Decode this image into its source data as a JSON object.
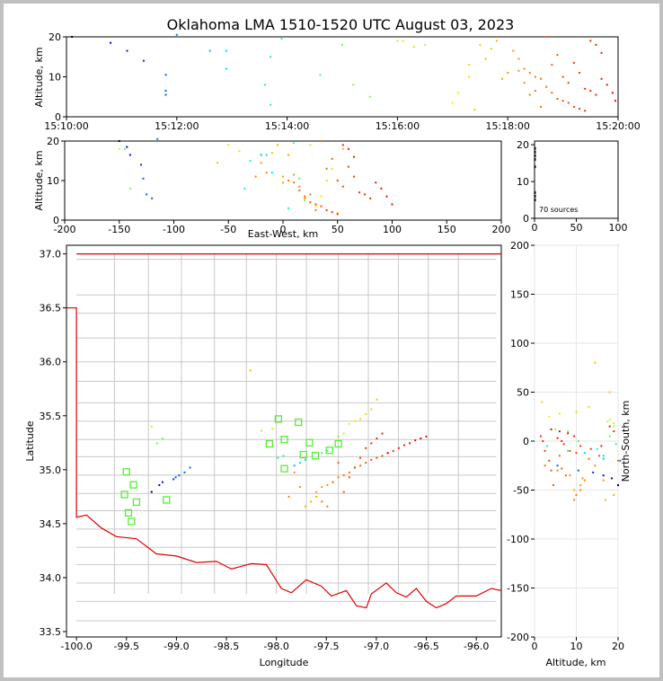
{
  "chart_data": {
    "type": "scatter",
    "title": "Oklahoma LMA 1510-1520 UTC August 03, 2023",
    "source_count_label": "70 sources",
    "time_panel": {
      "ylabel": "Altitude, km",
      "x_ticks": [
        "15:10:00",
        "15:12:00",
        "15:14:00",
        "15:16:00",
        "15:18:00",
        "15:20:00"
      ],
      "x_tick_minutes": [
        0,
        2,
        4,
        6,
        8,
        10
      ],
      "xlim": [
        0,
        10
      ],
      "ylim": [
        0,
        20
      ],
      "y_ticks": [
        0,
        10,
        20
      ]
    },
    "ew_panel": {
      "xlabel": "East-West, km",
      "ylabel": "Altitude, km",
      "xlim": [
        -200,
        200
      ],
      "ylim": [
        0,
        20
      ],
      "x_ticks": [
        -200,
        -150,
        -100,
        -50,
        0,
        50,
        100,
        150,
        200
      ],
      "y_ticks": [
        0,
        10,
        20
      ]
    },
    "hist_panel": {
      "xlim": [
        0,
        100
      ],
      "ylim": [
        0,
        21
      ],
      "x_ticks": [
        0,
        50,
        100
      ],
      "y_ticks": [
        0,
        10,
        20
      ],
      "counts": [
        {
          "alt": 5,
          "count": 1
        },
        {
          "alt": 6,
          "count": 1
        },
        {
          "alt": 7,
          "count": 1
        },
        {
          "alt": 14,
          "count": 1
        },
        {
          "alt": 16,
          "count": 1
        },
        {
          "alt": 17,
          "count": 1
        },
        {
          "alt": 18,
          "count": 1
        },
        {
          "alt": 19,
          "count": 1
        }
      ]
    },
    "map_panel": {
      "xlabel": "Longitude",
      "ylabel": "Latitude",
      "xlim": [
        -100.1,
        -95.75
      ],
      "ylim": [
        33.45,
        37.08
      ],
      "x_ticks": [
        -100.0,
        -99.5,
        -99.0,
        -98.5,
        -98.0,
        -97.5,
        -97.0,
        -96.5,
        -96.0
      ],
      "y_ticks": [
        33.5,
        34.0,
        34.5,
        35.0,
        35.5,
        36.0,
        36.5,
        37.0
      ],
      "boundary_color": "#e00000",
      "county_color": "#c8c8c8",
      "stations": [
        {
          "lon": -99.5,
          "lat": 34.98
        },
        {
          "lon": -99.43,
          "lat": 34.86
        },
        {
          "lon": -99.52,
          "lat": 34.77
        },
        {
          "lon": -99.4,
          "lat": 34.7
        },
        {
          "lon": -99.48,
          "lat": 34.6
        },
        {
          "lon": -99.45,
          "lat": 34.52
        },
        {
          "lon": -99.1,
          "lat": 34.72
        },
        {
          "lon": -97.98,
          "lat": 35.47
        },
        {
          "lon": -97.92,
          "lat": 35.28
        },
        {
          "lon": -98.07,
          "lat": 35.24
        },
        {
          "lon": -97.78,
          "lat": 35.44
        },
        {
          "lon": -97.67,
          "lat": 35.25
        },
        {
          "lon": -97.73,
          "lat": 35.14
        },
        {
          "lon": -97.61,
          "lat": 35.13
        },
        {
          "lon": -97.47,
          "lat": 35.18
        },
        {
          "lon": -97.38,
          "lat": 35.24
        },
        {
          "lon": -97.92,
          "lat": 35.01
        }
      ]
    },
    "ns_panel": {
      "xlabel": "Altitude, km",
      "ylabel": "North-South, km",
      "xlim": [
        0,
        20
      ],
      "ylim": [
        -200,
        200
      ],
      "x_ticks": [
        0,
        10,
        20
      ],
      "y_ticks": [
        -200,
        -150,
        -100,
        -50,
        0,
        50,
        100,
        150,
        200
      ]
    },
    "sources": [
      {
        "t": 0.1,
        "ew": -150,
        "ns": -45,
        "alt": 20.0
      },
      {
        "t": 0.8,
        "ew": -143,
        "ns": -38,
        "alt": 18.5
      },
      {
        "t": 1.1,
        "ew": -140,
        "ns": -35,
        "alt": 16.5
      },
      {
        "t": 1.4,
        "ew": -130,
        "ns": -32,
        "alt": 14.0
      },
      {
        "t": 1.8,
        "ew": -128,
        "ns": -30,
        "alt": 10.5
      },
      {
        "t": 1.8,
        "ew": -125,
        "ns": -28,
        "alt": 6.5
      },
      {
        "t": 1.8,
        "ew": -120,
        "ns": -25,
        "alt": 5.5
      },
      {
        "t": 2.0,
        "ew": -115,
        "ns": -20,
        "alt": 20.5
      },
      {
        "t": 2.6,
        "ew": -20,
        "ns": -18,
        "alt": 16.5
      },
      {
        "t": 2.9,
        "ew": -15,
        "ns": -15,
        "alt": 16.5
      },
      {
        "t": 2.9,
        "ew": -10,
        "ns": -12,
        "alt": 12.0
      },
      {
        "t": 3.6,
        "ew": -35,
        "ns": -10,
        "alt": 8.0
      },
      {
        "t": 3.7,
        "ew": -30,
        "ns": -8,
        "alt": 15.0
      },
      {
        "t": 3.7,
        "ew": 5,
        "ns": -5,
        "alt": 3.0
      },
      {
        "t": 3.9,
        "ew": 10,
        "ns": -3,
        "alt": 19.5
      },
      {
        "t": 4.6,
        "ew": 15,
        "ns": 0,
        "alt": 10.5
      },
      {
        "t": 5.0,
        "ew": -145,
        "ns": 5,
        "alt": 18.0
      },
      {
        "t": 5.2,
        "ew": -140,
        "ns": 10,
        "alt": 8.0
      },
      {
        "t": 5.5,
        "ew": 20,
        "ns": 12,
        "alt": 5.0
      },
      {
        "t": 6.0,
        "ew": 25,
        "ns": 15,
        "alt": 19.0
      },
      {
        "t": 6.1,
        "ew": -50,
        "ns": 18,
        "alt": 19.0
      },
      {
        "t": 6.3,
        "ew": -40,
        "ns": 20,
        "alt": 17.5
      },
      {
        "t": 6.5,
        "ew": -150,
        "ns": 22,
        "alt": 18.0
      },
      {
        "t": 7.0,
        "ew": 30,
        "ns": 25,
        "alt": 3.5
      },
      {
        "t": 7.1,
        "ew": 35,
        "ns": 28,
        "alt": 6.0
      },
      {
        "t": 7.3,
        "ew": 40,
        "ns": 30,
        "alt": 10.0
      },
      {
        "t": 7.3,
        "ew": 45,
        "ns": 35,
        "alt": 13.0
      },
      {
        "t": 7.4,
        "ew": 50,
        "ns": 40,
        "alt": 1.8
      },
      {
        "t": 7.5,
        "ew": 55,
        "ns": 50,
        "alt": 18.0
      },
      {
        "t": 7.6,
        "ew": -60,
        "ns": 80,
        "alt": 14.5
      },
      {
        "t": 7.7,
        "ew": -10,
        "ns": -60,
        "alt": 17.0
      },
      {
        "t": 7.8,
        "ew": -5,
        "ns": -55,
        "alt": 19.0
      },
      {
        "t": 7.9,
        "ew": 0,
        "ns": -50,
        "alt": 9.5
      },
      {
        "t": 8.0,
        "ew": 0,
        "ns": -45,
        "alt": 11.0
      },
      {
        "t": 8.1,
        "ew": 5,
        "ns": -40,
        "alt": 16.5
      },
      {
        "t": 8.2,
        "ew": 10,
        "ns": -38,
        "alt": 11.5
      },
      {
        "t": 8.3,
        "ew": 15,
        "ns": -35,
        "alt": 8.5
      },
      {
        "t": 8.4,
        "ew": 20,
        "ns": -30,
        "alt": 5.5
      },
      {
        "t": 8.5,
        "ew": 25,
        "ns": -28,
        "alt": 6.5
      },
      {
        "t": 8.6,
        "ew": 30,
        "ns": -25,
        "alt": 2.5
      },
      {
        "t": 8.7,
        "ew": 35,
        "ns": -20,
        "alt": 20.0
      },
      {
        "t": 8.8,
        "ew": 40,
        "ns": -18,
        "alt": 13.0
      },
      {
        "t": 8.9,
        "ew": 45,
        "ns": -15,
        "alt": 15.5
      },
      {
        "t": 9.0,
        "ew": 50,
        "ns": -12,
        "alt": 10.0
      },
      {
        "t": 9.1,
        "ew": 55,
        "ns": -10,
        "alt": 8.5
      },
      {
        "t": 9.2,
        "ew": 60,
        "ns": -8,
        "alt": 13.5
      },
      {
        "t": 9.3,
        "ew": 65,
        "ns": -5,
        "alt": 11.0
      },
      {
        "t": 9.4,
        "ew": 70,
        "ns": -3,
        "alt": 7.0
      },
      {
        "t": 9.5,
        "ew": 75,
        "ns": 0,
        "alt": 6.5
      },
      {
        "t": 9.6,
        "ew": 80,
        "ns": 3,
        "alt": 5.5
      },
      {
        "t": 9.7,
        "ew": 85,
        "ns": 5,
        "alt": 9.5
      },
      {
        "t": 9.8,
        "ew": 90,
        "ns": 8,
        "alt": 8.0
      },
      {
        "t": 9.9,
        "ew": 95,
        "ns": 10,
        "alt": 6.0
      },
      {
        "t": 9.95,
        "ew": 100,
        "ns": 12,
        "alt": 4.0
      },
      {
        "t": 8.2,
        "ew": -20,
        "ns": -25,
        "alt": 14.5
      },
      {
        "t": 8.3,
        "ew": -15,
        "ns": -40,
        "alt": 12.0
      },
      {
        "t": 8.4,
        "ew": -25,
        "ns": -50,
        "alt": 11.0
      },
      {
        "t": 8.5,
        "ew": 5,
        "ns": -55,
        "alt": 10.0
      },
      {
        "t": 8.6,
        "ew": 10,
        "ns": -60,
        "alt": 9.5
      },
      {
        "t": 8.7,
        "ew": 15,
        "ns": -35,
        "alt": 7.5
      },
      {
        "t": 8.8,
        "ew": 20,
        "ns": -15,
        "alt": 6.0
      },
      {
        "t": 8.9,
        "ew": 25,
        "ns": -45,
        "alt": 4.5
      },
      {
        "t": 9.0,
        "ew": 30,
        "ns": -30,
        "alt": 4.0
      },
      {
        "t": 9.1,
        "ew": 35,
        "ns": -20,
        "alt": 3.5
      },
      {
        "t": 9.2,
        "ew": 40,
        "ns": -10,
        "alt": 2.5
      },
      {
        "t": 9.3,
        "ew": 45,
        "ns": 0,
        "alt": 2.0
      },
      {
        "t": 9.4,
        "ew": 50,
        "ns": 5,
        "alt": 1.5
      },
      {
        "t": 9.5,
        "ew": 55,
        "ns": 10,
        "alt": 19.0
      },
      {
        "t": 9.6,
        "ew": 60,
        "ns": 15,
        "alt": 18.0
      },
      {
        "t": 9.7,
        "ew": 65,
        "ns": -5,
        "alt": 16.0
      }
    ]
  }
}
